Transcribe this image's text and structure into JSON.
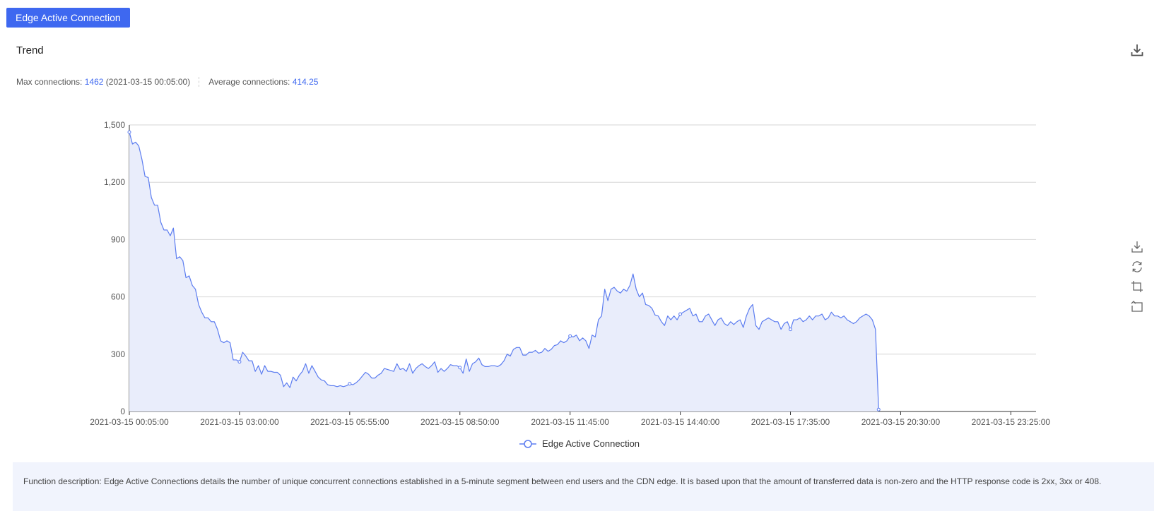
{
  "tab": {
    "label": "Edge Active Connection"
  },
  "section": {
    "title": "Trend"
  },
  "stats": {
    "max_label": "Max connections:",
    "max_value": "1462",
    "max_time": "(2021-03-15 00:05:00)",
    "avg_label": "Average connections:",
    "avg_value": "414.25"
  },
  "description": "Function description: Edge Active Connections details the number of unique concurrent connections established in a 5-minute segment between end users and the CDN edge. It is based upon that the amount of transferred data is non-zero and the HTTP response code is 2xx, 3xx or 408.",
  "icons": {
    "export": "download-icon",
    "toolbox": [
      "save-image-icon",
      "restore-icon",
      "zoom-icon",
      "zoom-reset-icon"
    ]
  },
  "colors": {
    "accent": "#3e68f0",
    "series": "#5b7cf0",
    "area": "#e9edfb",
    "grid": "#d6d6d6"
  },
  "chart_data": {
    "type": "area",
    "title": "",
    "xlabel": "",
    "ylabel": "",
    "ylim": [
      0,
      1500
    ],
    "yticks": [
      0,
      300,
      600,
      900,
      1200,
      1500
    ],
    "ytick_labels": [
      "0",
      "300",
      "600",
      "900",
      "1,200",
      "1,500"
    ],
    "x_axis": {
      "start": "2021-03-15 00:05:00",
      "interval_minutes": 5,
      "total_slots": 288,
      "tick_every": 35,
      "tick_labels": [
        "2021-03-15 00:05:00",
        "2021-03-15 03:00:00",
        "2021-03-15 05:55:00",
        "2021-03-15 08:50:00",
        "2021-03-15 11:45:00",
        "2021-03-15 14:40:00",
        "2021-03-15 17:35:00",
        "2021-03-15 20:30:00",
        "2021-03-15 23:25:00"
      ]
    },
    "grid": true,
    "legend_position": "bottom-center",
    "series": [
      {
        "name": "Edge Active Connection",
        "values": [
          1462,
          1400,
          1410,
          1390,
          1320,
          1230,
          1225,
          1120,
          1080,
          1080,
          990,
          950,
          950,
          920,
          960,
          800,
          810,
          790,
          700,
          710,
          660,
          640,
          560,
          520,
          490,
          490,
          470,
          470,
          430,
          370,
          360,
          370,
          360,
          270,
          270,
          260,
          310,
          290,
          265,
          265,
          210,
          240,
          195,
          240,
          210,
          210,
          205,
          205,
          190,
          130,
          150,
          125,
          180,
          160,
          190,
          210,
          250,
          200,
          240,
          210,
          180,
          165,
          160,
          140,
          135,
          135,
          130,
          135,
          130,
          135,
          145,
          140,
          150,
          165,
          185,
          205,
          195,
          175,
          175,
          190,
          200,
          225,
          220,
          215,
          210,
          250,
          220,
          225,
          210,
          250,
          200,
          225,
          240,
          250,
          235,
          225,
          240,
          260,
          205,
          225,
          210,
          225,
          245,
          240,
          240,
          230,
          200,
          275,
          210,
          250,
          260,
          280,
          245,
          235,
          235,
          240,
          240,
          235,
          245,
          265,
          300,
          290,
          325,
          335,
          335,
          295,
          295,
          310,
          310,
          320,
          305,
          310,
          330,
          315,
          325,
          345,
          350,
          370,
          360,
          370,
          395,
          390,
          400,
          370,
          385,
          370,
          330,
          400,
          390,
          480,
          500,
          640,
          580,
          640,
          650,
          630,
          620,
          640,
          630,
          660,
          720,
          640,
          600,
          620,
          560,
          555,
          540,
          505,
          500,
          470,
          450,
          500,
          480,
          500,
          480,
          510,
          520,
          530,
          540,
          500,
          510,
          470,
          470,
          500,
          510,
          480,
          450,
          480,
          490,
          460,
          450,
          470,
          455,
          470,
          480,
          440,
          500,
          540,
          560,
          450,
          430,
          470,
          480,
          490,
          480,
          470,
          470,
          430,
          460,
          470,
          430,
          480,
          480,
          490,
          470,
          480,
          500,
          480,
          500,
          500,
          510,
          480,
          490,
          520,
          500,
          500,
          490,
          500,
          480,
          470,
          460,
          470,
          490,
          500,
          510,
          500,
          480,
          430,
          10
        ]
      }
    ]
  }
}
